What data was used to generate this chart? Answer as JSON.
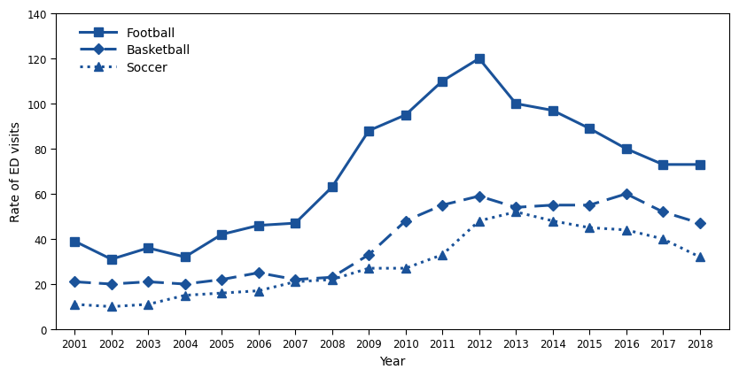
{
  "years": [
    2001,
    2002,
    2003,
    2004,
    2005,
    2006,
    2007,
    2008,
    2009,
    2010,
    2011,
    2012,
    2013,
    2014,
    2015,
    2016,
    2017,
    2018
  ],
  "football": [
    39,
    31,
    36,
    32,
    42,
    46,
    47,
    63,
    88,
    95,
    110,
    120,
    100,
    97,
    89,
    80,
    73,
    73
  ],
  "basketball": [
    21,
    20,
    21,
    20,
    22,
    25,
    22,
    23,
    33,
    48,
    55,
    59,
    54,
    55,
    55,
    60,
    52,
    47
  ],
  "soccer": [
    11,
    10,
    11,
    15,
    16,
    17,
    21,
    22,
    27,
    27,
    33,
    48,
    52,
    48,
    45,
    44,
    40,
    32
  ],
  "color": "#1a5299",
  "xlabel": "Year",
  "ylabel": "Rate of ED visits",
  "ylim": [
    0,
    140
  ],
  "yticks": [
    0,
    20,
    40,
    60,
    80,
    100,
    120,
    140
  ],
  "xlim": [
    2000.5,
    2018.8
  ],
  "figsize": [
    8.34,
    4.27
  ],
  "dpi": 100,
  "legend_labels": [
    "Football",
    "Basketball",
    "Soccer"
  ],
  "tick_fontsize": 8.5,
  "label_fontsize": 10,
  "legend_fontsize": 10
}
